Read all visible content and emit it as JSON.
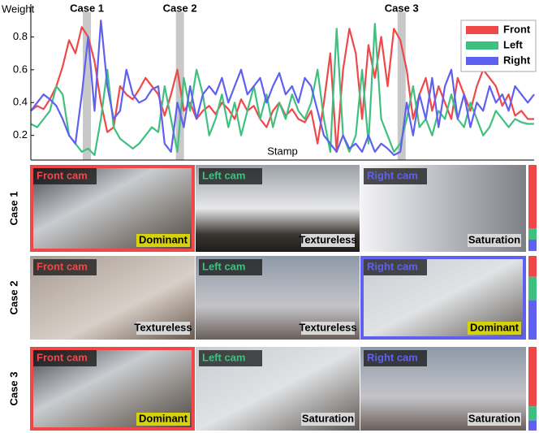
{
  "chart_data": {
    "type": "line",
    "y_label": "Weight",
    "x_label": "Stamp",
    "categories": [
      null,
      null,
      null,
      null,
      null,
      null,
      null,
      null,
      null,
      null,
      null,
      null,
      null,
      null,
      null,
      null,
      null,
      null,
      null,
      null,
      null,
      null,
      null,
      null,
      null,
      null,
      null,
      null,
      null,
      null,
      null,
      null,
      null,
      null,
      null,
      null,
      null,
      null,
      null,
      null,
      null,
      null,
      null,
      null,
      null,
      null,
      null,
      null,
      null,
      null,
      null,
      null,
      null,
      null,
      null,
      null,
      null,
      null,
      null,
      null,
      null,
      null,
      null,
      null,
      null,
      null,
      null,
      null,
      null,
      null,
      null,
      null,
      null,
      null,
      null,
      null,
      null,
      null,
      null,
      null
    ],
    "series": [
      {
        "name": "Front",
        "color": "#f04848",
        "values": [
          0.35,
          0.38,
          0.36,
          0.42,
          0.5,
          0.62,
          0.78,
          0.7,
          0.86,
          0.8,
          0.65,
          0.4,
          0.22,
          0.25,
          0.5,
          0.45,
          0.42,
          0.48,
          0.55,
          0.5,
          0.45,
          0.32,
          0.45,
          0.6,
          0.35,
          0.4,
          0.3,
          0.35,
          0.38,
          0.33,
          0.4,
          0.36,
          0.3,
          0.42,
          0.35,
          0.38,
          0.3,
          0.25,
          0.35,
          0.4,
          0.32,
          0.36,
          0.3,
          0.28,
          0.35,
          0.15,
          0.4,
          0.7,
          0.1,
          0.6,
          0.85,
          0.7,
          0.3,
          0.75,
          0.55,
          0.8,
          0.5,
          0.85,
          0.78,
          0.6,
          0.3,
          0.45,
          0.55,
          0.35,
          0.5,
          0.4,
          0.3,
          0.55,
          0.45,
          0.35,
          0.5,
          0.6,
          0.55,
          0.5,
          0.38,
          0.45,
          0.32,
          0.35,
          0.3,
          0.3
        ]
      },
      {
        "name": "Left",
        "color": "#40c080",
        "values": [
          0.27,
          0.25,
          0.3,
          0.35,
          0.5,
          0.45,
          0.2,
          0.15,
          0.1,
          0.12,
          0.08,
          0.3,
          0.6,
          0.25,
          0.18,
          0.15,
          0.12,
          0.15,
          0.2,
          0.25,
          0.22,
          0.5,
          0.3,
          0.1,
          0.55,
          0.35,
          0.6,
          0.45,
          0.2,
          0.3,
          0.45,
          0.25,
          0.4,
          0.2,
          0.35,
          0.5,
          0.3,
          0.45,
          0.25,
          0.4,
          0.3,
          0.45,
          0.35,
          0.3,
          0.4,
          0.6,
          0.3,
          0.1,
          0.85,
          0.2,
          0.1,
          0.2,
          0.6,
          0.15,
          0.88,
          0.3,
          0.2,
          0.1,
          0.15,
          0.3,
          0.5,
          0.25,
          0.3,
          0.2,
          0.35,
          0.3,
          0.45,
          0.3,
          0.25,
          0.4,
          0.3,
          0.2,
          0.25,
          0.35,
          0.3,
          0.25,
          0.3,
          0.28,
          0.27,
          0.27
        ]
      },
      {
        "name": "Right",
        "color": "#6060f0",
        "values": [
          0.35,
          0.4,
          0.45,
          0.42,
          0.38,
          0.3,
          0.2,
          0.15,
          0.45,
          0.8,
          0.35,
          0.9,
          0.5,
          0.3,
          0.35,
          0.6,
          0.45,
          0.4,
          0.42,
          0.48,
          0.5,
          0.15,
          0.1,
          0.4,
          0.25,
          0.5,
          0.3,
          0.45,
          0.5,
          0.45,
          0.55,
          0.4,
          0.5,
          0.6,
          0.45,
          0.5,
          0.55,
          0.4,
          0.5,
          0.58,
          0.45,
          0.5,
          0.4,
          0.55,
          0.5,
          0.35,
          0.2,
          0.15,
          0.1,
          0.2,
          0.12,
          0.15,
          0.1,
          0.2,
          0.1,
          0.15,
          0.12,
          0.08,
          0.1,
          0.4,
          0.2,
          0.45,
          0.3,
          0.55,
          0.25,
          0.5,
          0.6,
          0.3,
          0.45,
          0.25,
          0.4,
          0.35,
          0.5,
          0.4,
          0.45,
          0.35,
          0.5,
          0.45,
          0.4,
          0.45
        ]
      }
    ],
    "ylim": [
      0.05,
      1.0
    ],
    "yticks": [
      0.2,
      0.4,
      0.6,
      0.8
    ],
    "legend": "top-right",
    "annotations": [
      {
        "text": "Case 1",
        "x": 8.8
      },
      {
        "text": "Case 2",
        "x": 23.4
      },
      {
        "text": "Case 3",
        "x": 58.2
      }
    ]
  },
  "cases": [
    {
      "label": "Case 1",
      "dominant": 0,
      "weights": [
        0.73,
        0.13,
        0.13
      ],
      "cams": [
        {
          "label": "Front cam",
          "badge": "Dominant"
        },
        {
          "label": "Left cam",
          "badge": "Textureless"
        },
        {
          "label": "Right cam",
          "badge": "Saturation"
        }
      ]
    },
    {
      "label": "Case 2",
      "dominant": 2,
      "weights": [
        0.25,
        0.28,
        0.47
      ],
      "cams": [
        {
          "label": "Front cam",
          "badge": "Textureless"
        },
        {
          "label": "Left cam",
          "badge": "Textureless"
        },
        {
          "label": "Right cam",
          "badge": "Dominant"
        }
      ]
    },
    {
      "label": "Case 3",
      "dominant": 0,
      "weights": [
        0.71,
        0.17,
        0.12
      ],
      "cams": [
        {
          "label": "Front cam",
          "badge": "Dominant"
        },
        {
          "label": "Left cam",
          "badge": "Saturation"
        },
        {
          "label": "Right cam",
          "badge": "Saturation"
        }
      ]
    }
  ]
}
